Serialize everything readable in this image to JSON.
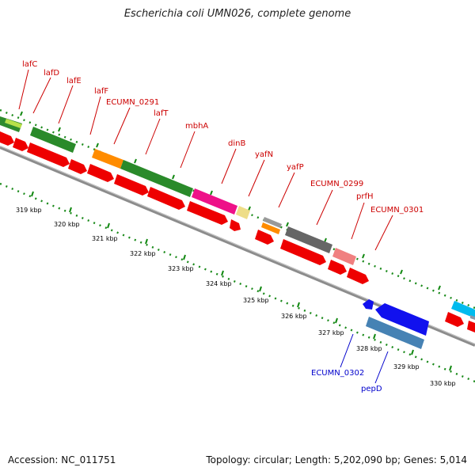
{
  "title": "Escherichia coli UMN026, complete genome",
  "accession": "Accession: NC_011751",
  "summary": "Topology: circular; Length: 5,202,090 bp; Genes: 5,014",
  "colors": {
    "forward_label": "#cc0000",
    "reverse_label": "#0000cc",
    "backbone": "#888888",
    "tick": "#118811"
  },
  "kbp_ticks": [
    {
      "label": "319 kbp"
    },
    {
      "label": "320 kbp"
    },
    {
      "label": "321 kbp"
    },
    {
      "label": "322 kbp"
    },
    {
      "label": "323 kbp"
    },
    {
      "label": "324 kbp"
    },
    {
      "label": "325 kbp"
    },
    {
      "label": "326 kbp"
    },
    {
      "label": "327 kbp"
    },
    {
      "label": "328 kbp"
    },
    {
      "label": "329 kbp"
    },
    {
      "label": "330 kbp"
    }
  ],
  "gene_labels": [
    {
      "text": "lafC",
      "strand": "forward"
    },
    {
      "text": "lafD",
      "strand": "forward"
    },
    {
      "text": "lafE",
      "strand": "forward"
    },
    {
      "text": "lafF",
      "strand": "forward"
    },
    {
      "text": "ECUMN_0291",
      "strand": "forward"
    },
    {
      "text": "lafT",
      "strand": "forward"
    },
    {
      "text": "mbhA",
      "strand": "forward"
    },
    {
      "text": "dinB",
      "strand": "forward"
    },
    {
      "text": "yafN",
      "strand": "forward"
    },
    {
      "text": "yafP",
      "strand": "forward"
    },
    {
      "text": "ECUMN_0299",
      "strand": "forward"
    },
    {
      "text": "prfH",
      "strand": "forward"
    },
    {
      "text": "ECUMN_0301",
      "strand": "forward"
    },
    {
      "text": "ECUMN_0302",
      "strand": "reverse"
    },
    {
      "text": "pepD",
      "strand": "reverse"
    }
  ]
}
